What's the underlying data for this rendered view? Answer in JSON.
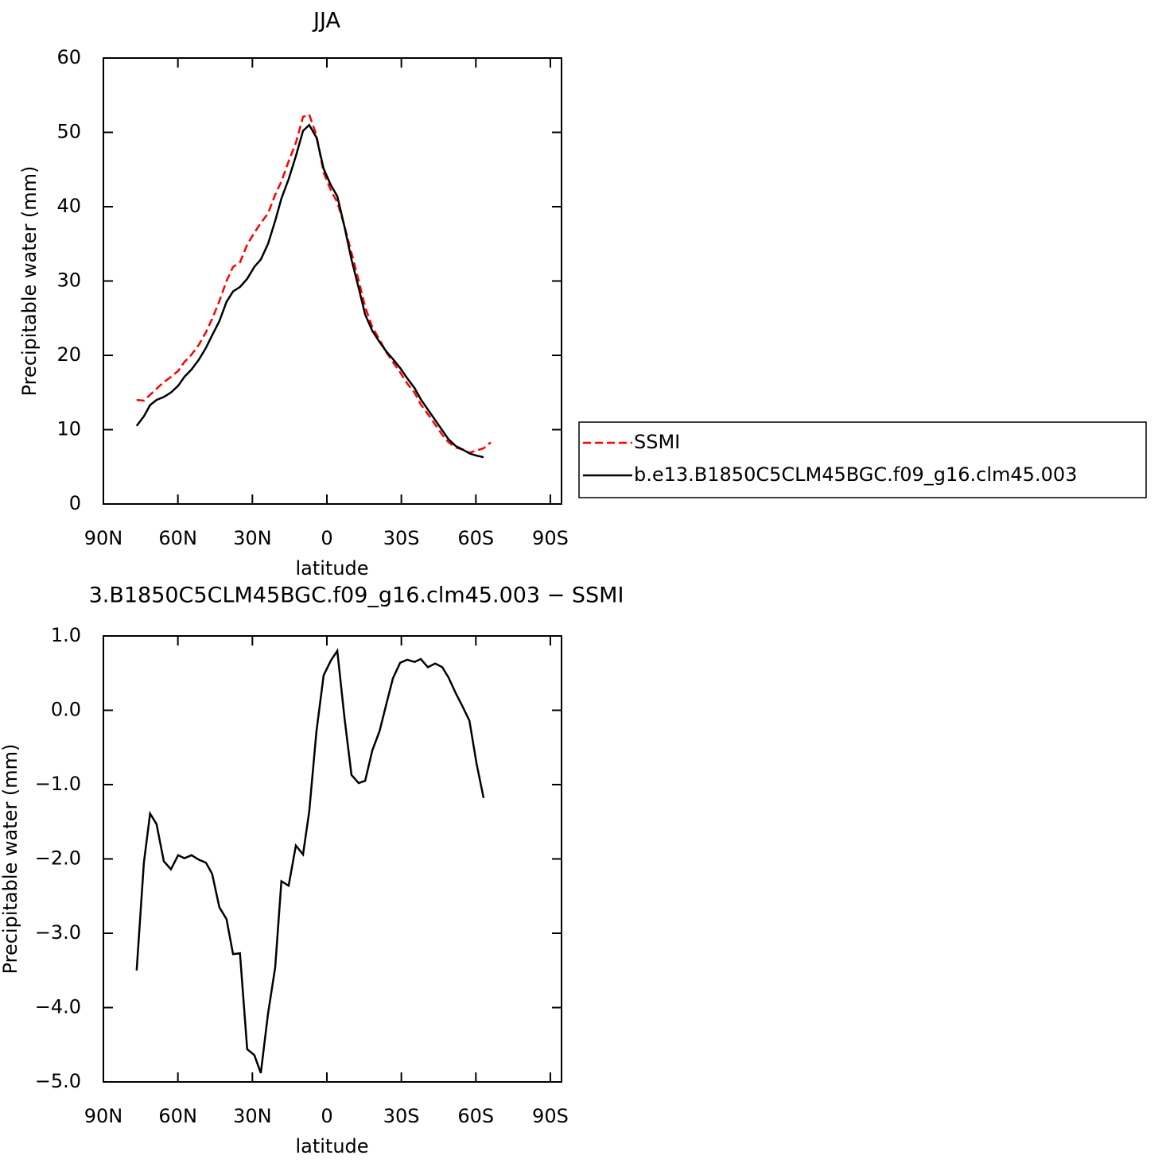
{
  "chart_data": [
    {
      "type": "line",
      "title": "JJA",
      "xlabel": "latitude",
      "ylabel": "Precipitable water (mm)",
      "xlim": [
        90,
        -94.5
      ],
      "ylim": [
        0,
        60
      ],
      "xticks": [
        {
          "value": 90,
          "label": "90N"
        },
        {
          "value": 60,
          "label": "60N"
        },
        {
          "value": 30,
          "label": "30N"
        },
        0,
        {
          "value": -30,
          "label": "30S"
        },
        {
          "value": -60,
          "label": "60S"
        },
        {
          "value": -90,
          "label": "90S"
        }
      ],
      "yticks": [
        0,
        10,
        20,
        30,
        40,
        50,
        60
      ],
      "legend": "right",
      "series": [
        {
          "name": "SSMI",
          "color": "#ff0000",
          "line_style": "dashed",
          "x": [
            76.6,
            73.7,
            71.2,
            68.6,
            65.7,
            62.8,
            59.9,
            57.4,
            54.5,
            51.6,
            48.7,
            46.2,
            43.3,
            40.4,
            37.8,
            35.0,
            32.1,
            29.2,
            26.6,
            23.7,
            20.8,
            18.3,
            15.4,
            12.5,
            9.6,
            7.1,
            4.2,
            1.3,
            -1.6,
            -4.2,
            -7.1,
            -9.9,
            -12.8,
            -15.4,
            -18.3,
            -21.2,
            -24.0,
            -26.6,
            -29.5,
            -32.4,
            -35.3,
            -37.8,
            -40.7,
            -43.6,
            -46.5,
            -49.0,
            -51.9,
            -54.8,
            -57.4,
            -60.3,
            -63.1,
            -66.0
          ],
          "values": [
            14.0,
            13.9,
            14.7,
            15.5,
            16.4,
            17.1,
            17.9,
            19.1,
            20.1,
            21.4,
            23.1,
            24.9,
            27.3,
            30.0,
            31.9,
            32.5,
            34.9,
            36.5,
            37.8,
            39.1,
            41.6,
            43.4,
            46.1,
            48.6,
            52.1,
            52.4,
            49.6,
            44.6,
            42.2,
            40.6,
            37.4,
            33.8,
            30.1,
            26.5,
            23.8,
            22.1,
            20.4,
            19.1,
            17.7,
            16.2,
            15.0,
            13.4,
            12.1,
            10.7,
            9.3,
            8.3,
            7.6,
            7.3,
            6.9,
            7.2,
            7.5,
            8.3
          ]
        },
        {
          "name": "b.e13.B1850C5CLM45BGC.f09_g16.clm45.003",
          "color": "#000000",
          "line_style": "solid",
          "x": [
            76.6,
            73.7,
            71.2,
            68.6,
            65.7,
            62.8,
            59.9,
            57.4,
            54.5,
            51.6,
            48.7,
            46.2,
            43.3,
            40.4,
            37.8,
            35.0,
            32.1,
            29.2,
            26.6,
            23.7,
            20.8,
            18.3,
            15.4,
            12.5,
            9.6,
            7.1,
            4.2,
            1.3,
            -1.6,
            -4.2,
            -7.1,
            -9.9,
            -12.8,
            -15.4,
            -18.3,
            -21.2,
            -24.0,
            -26.6,
            -29.5,
            -32.4,
            -35.3,
            -37.8,
            -40.7,
            -43.6,
            -46.5,
            -49.0,
            -51.9,
            -54.8,
            -57.4,
            -60.3,
            -63.1
          ],
          "values": [
            10.5,
            11.8,
            13.3,
            14.0,
            14.4,
            15.0,
            15.9,
            17.1,
            18.1,
            19.4,
            21.0,
            22.7,
            24.6,
            27.2,
            28.6,
            29.2,
            30.3,
            31.9,
            32.9,
            35.0,
            38.1,
            41.1,
            43.7,
            46.8,
            50.2,
            51.0,
            49.3,
            45.1,
            42.9,
            41.4,
            37.3,
            32.9,
            29.1,
            25.5,
            23.3,
            21.8,
            20.5,
            19.5,
            18.3,
            16.9,
            15.6,
            14.1,
            12.7,
            11.3,
            9.9,
            8.7,
            7.8,
            7.3,
            6.8,
            6.5,
            6.3
          ]
        }
      ]
    },
    {
      "type": "line",
      "title": "3.B1850C5CLM45BGC.f09_g16.clm45.003 − SSMI",
      "xlabel": "latitude",
      "ylabel": "Precipitable water (mm)",
      "xlim": [
        90,
        -94.5
      ],
      "ylim": [
        -5,
        1
      ],
      "xticks": [
        {
          "value": 90,
          "label": "90N"
        },
        {
          "value": 60,
          "label": "60N"
        },
        {
          "value": 30,
          "label": "30N"
        },
        0,
        {
          "value": -30,
          "label": "30S"
        },
        {
          "value": -60,
          "label": "60S"
        },
        {
          "value": -90,
          "label": "90S"
        }
      ],
      "yticks": [
        {
          "value": -5,
          "label": "−5.0"
        },
        {
          "value": -4,
          "label": "−4.0"
        },
        {
          "value": -3,
          "label": "−3.0"
        },
        {
          "value": -2,
          "label": "−2.0"
        },
        {
          "value": -1,
          "label": "−1.0"
        },
        {
          "value": 0,
          "label": "0.0"
        },
        {
          "value": 1,
          "label": "1.0"
        }
      ],
      "series": [
        {
          "color": "#000000",
          "line_style": "solid",
          "x": [
            76.6,
            73.7,
            71.2,
            68.6,
            65.7,
            62.8,
            59.9,
            57.4,
            54.5,
            51.6,
            48.7,
            46.2,
            43.3,
            40.4,
            37.8,
            35.0,
            32.1,
            29.2,
            26.6,
            23.7,
            20.8,
            18.3,
            15.4,
            12.5,
            9.6,
            7.1,
            4.2,
            1.3,
            -1.6,
            -4.2,
            -7.1,
            -9.9,
            -12.8,
            -15.4,
            -18.3,
            -21.2,
            -24.0,
            -26.6,
            -29.5,
            -32.4,
            -35.3,
            -37.8,
            -40.7,
            -43.6,
            -46.5,
            -49.0,
            -51.9,
            -54.8,
            -57.4,
            -60.3,
            -63.1
          ],
          "values": [
            -3.5,
            -2.05,
            -1.39,
            -1.53,
            -2.03,
            -2.14,
            -1.95,
            -1.99,
            -1.95,
            -2.01,
            -2.05,
            -2.2,
            -2.65,
            -2.81,
            -3.28,
            -3.27,
            -4.56,
            -4.64,
            -4.88,
            -4.08,
            -3.46,
            -2.3,
            -2.36,
            -1.82,
            -1.94,
            -1.36,
            -0.28,
            0.47,
            0.67,
            0.8,
            -0.1,
            -0.87,
            -0.98,
            -0.95,
            -0.54,
            -0.28,
            0.09,
            0.43,
            0.64,
            0.68,
            0.65,
            0.69,
            0.58,
            0.63,
            0.58,
            0.44,
            0.23,
            0.04,
            -0.14,
            -0.72,
            -1.18
          ]
        }
      ]
    }
  ]
}
